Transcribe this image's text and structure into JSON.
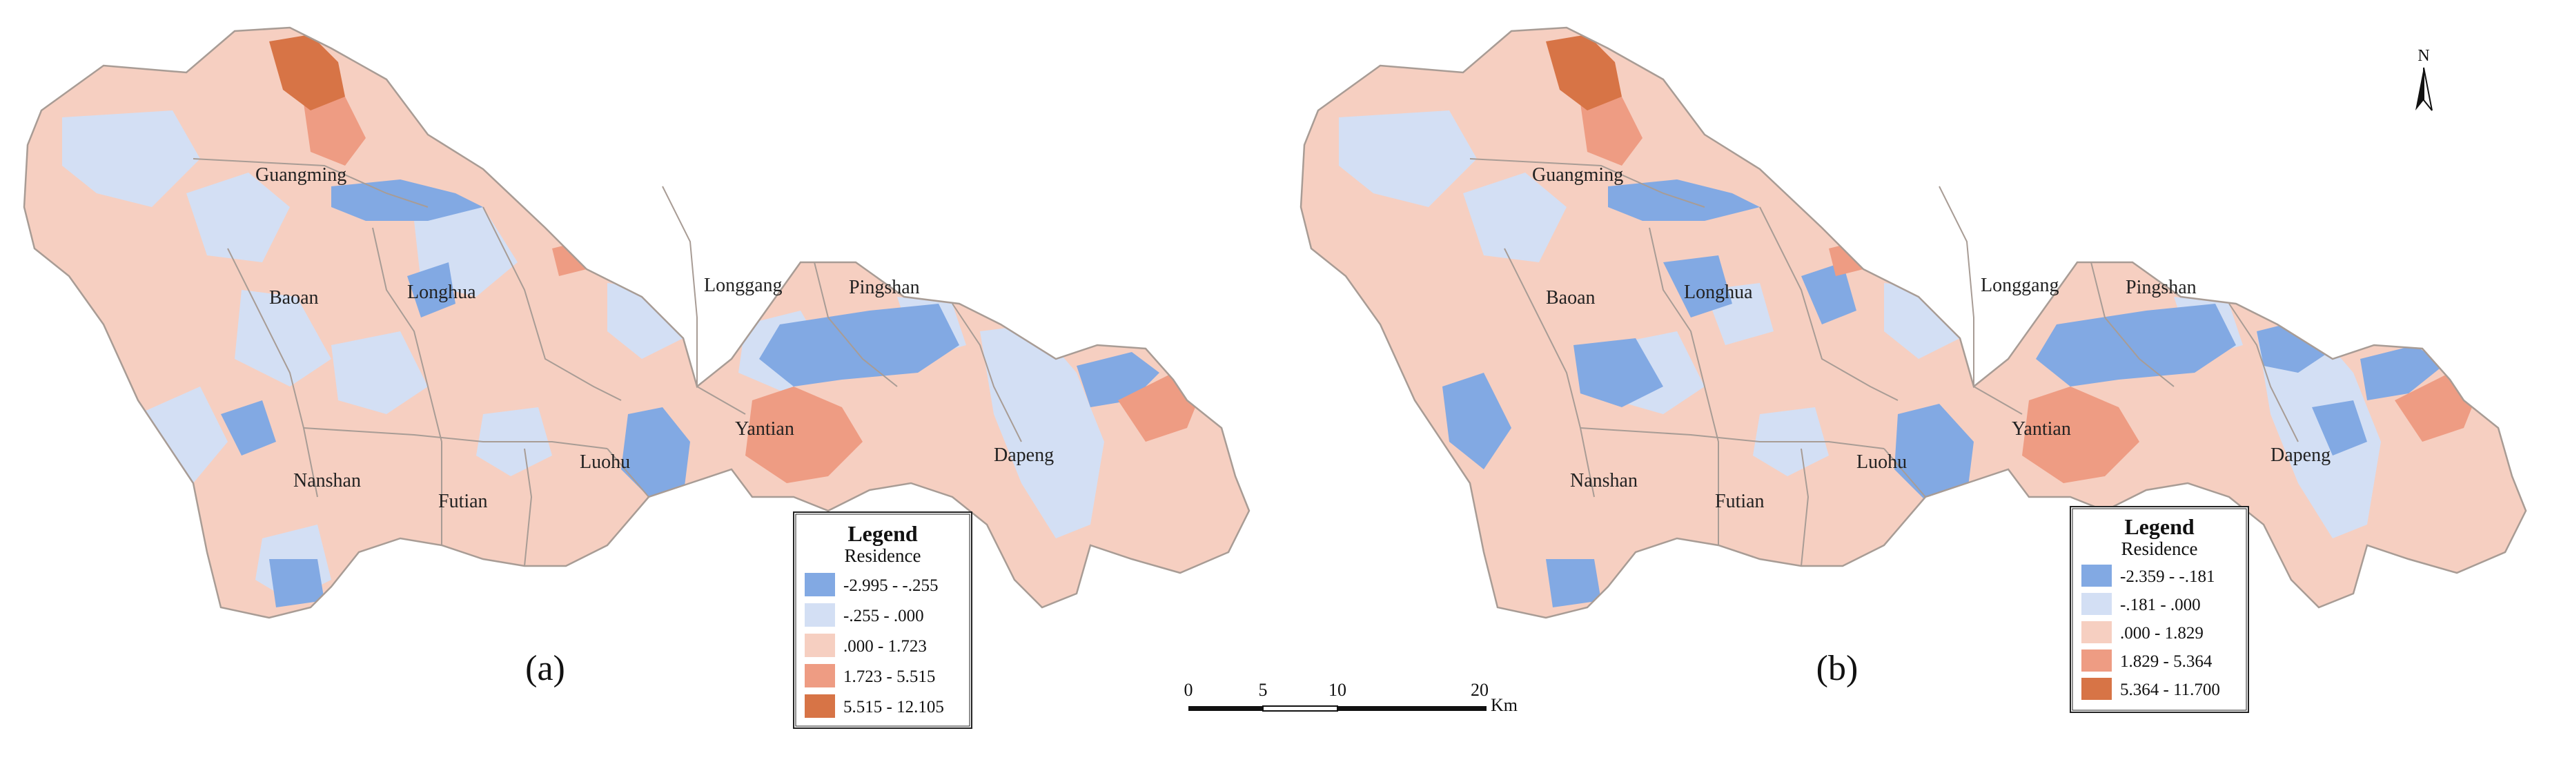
{
  "colors": {
    "c1": "#82a9e3",
    "c2": "#d3dff4",
    "c3": "#f6cfc1",
    "c4": "#ee9c83",
    "c5": "#d77446",
    "boundary": "#a89c95"
  },
  "maps": [
    {
      "caption": "(a)",
      "districts": [
        "Guangming",
        "Baoan",
        "Longhua",
        "Nanshan",
        "Futian",
        "Luohu",
        "Longgang",
        "Pingshan",
        "Yantian",
        "Dapeng"
      ],
      "legend": {
        "title": "Legend",
        "subtitle": "Residence",
        "classes": [
          "-2.995 - -.255",
          "-.255 - .000",
          ".000 - 1.723",
          "1.723 - 5.515",
          "5.515 - 12.105"
        ]
      }
    },
    {
      "caption": "(b)",
      "districts": [
        "Guangming",
        "Baoan",
        "Longhua",
        "Nanshan",
        "Futian",
        "Luohu",
        "Longgang",
        "Pingshan",
        "Yantian",
        "Dapeng"
      ],
      "legend": {
        "title": "Legend",
        "subtitle": "Residence",
        "classes": [
          "-2.359 - -.181",
          "-.181 - .000",
          ".000 - 1.829",
          "1.829 - 5.364",
          "5.364 - 11.700"
        ]
      }
    }
  ],
  "scale_bar": {
    "ticks": [
      "0",
      "5",
      "10",
      "20"
    ],
    "unit": "Km"
  },
  "north_arrow": {
    "label": "N",
    "icon": "north-arrow-icon"
  }
}
